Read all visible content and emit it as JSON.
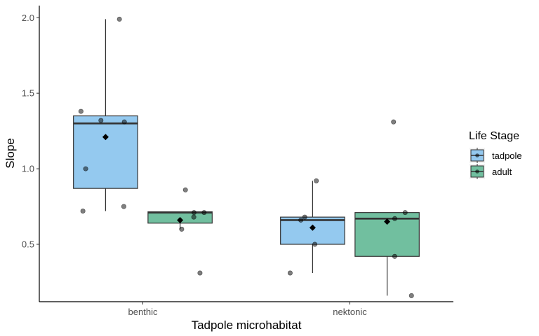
{
  "chart_data": {
    "type": "boxplot",
    "xlabel": "Tadpole microhabitat",
    "ylabel": "Slope",
    "categories": [
      "benthic",
      "nektonic"
    ],
    "ylim": [
      0.12,
      2.08
    ],
    "yticks": [
      0.5,
      1.0,
      1.5,
      2.0
    ],
    "ytick_labels": [
      "0.5",
      "1.0",
      "1.5",
      "2.0"
    ],
    "grid": false,
    "legend": {
      "title": "Life Stage",
      "placement": "right",
      "entries": [
        {
          "name": "tadpole",
          "color": "#94c9ef"
        },
        {
          "name": "adult",
          "color": "#71bf9f"
        }
      ]
    },
    "series": [
      {
        "name": "tadpole",
        "color": "#94c9ef",
        "boxes": [
          {
            "category": "benthic",
            "q1": 0.87,
            "median": 1.3,
            "q3": 1.35,
            "whisker_low": 0.72,
            "whisker_high": 1.99,
            "mean": 1.21,
            "points": [
              1.99,
              1.38,
              1.32,
              1.31,
              1.0,
              0.75,
              0.72
            ]
          },
          {
            "category": "nektonic",
            "q1": 0.5,
            "median": 0.66,
            "q3": 0.68,
            "whisker_low": 0.31,
            "whisker_high": 0.92,
            "mean": 0.61,
            "points": [
              0.92,
              0.68,
              0.66,
              0.5,
              0.31
            ]
          }
        ]
      },
      {
        "name": "adult",
        "color": "#71bf9f",
        "boxes": [
          {
            "category": "benthic",
            "q1": 0.64,
            "median": 0.71,
            "q3": 0.715,
            "whisker_low": 0.6,
            "whisker_high": 0.715,
            "mean": 0.66,
            "points": [
              0.86,
              0.71,
              0.71,
              0.68,
              0.6,
              0.31
            ]
          },
          {
            "category": "nektonic",
            "q1": 0.42,
            "median": 0.67,
            "q3": 0.71,
            "whisker_low": 0.16,
            "whisker_high": 0.71,
            "mean": 0.65,
            "points": [
              1.31,
              0.71,
              0.67,
              0.42,
              0.16
            ]
          }
        ]
      }
    ]
  }
}
